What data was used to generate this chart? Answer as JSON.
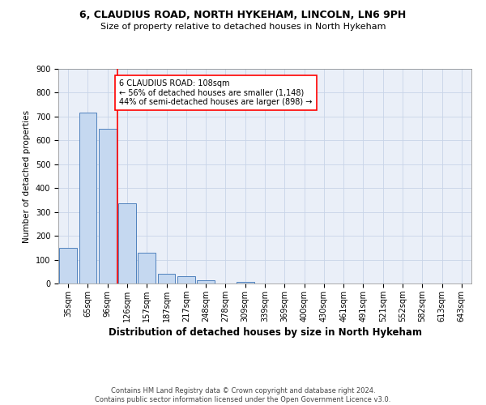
{
  "title1": "6, CLAUDIUS ROAD, NORTH HYKEHAM, LINCOLN, LN6 9PH",
  "title2": "Size of property relative to detached houses in North Hykeham",
  "xlabel": "Distribution of detached houses by size in North Hykeham",
  "ylabel": "Number of detached properties",
  "categories": [
    "35sqm",
    "65sqm",
    "96sqm",
    "126sqm",
    "157sqm",
    "187sqm",
    "217sqm",
    "248sqm",
    "278sqm",
    "309sqm",
    "339sqm",
    "369sqm",
    "400sqm",
    "430sqm",
    "461sqm",
    "491sqm",
    "521sqm",
    "552sqm",
    "582sqm",
    "613sqm",
    "643sqm"
  ],
  "values": [
    150,
    715,
    650,
    335,
    130,
    42,
    30,
    13,
    0,
    8,
    0,
    0,
    0,
    0,
    0,
    0,
    0,
    0,
    0,
    0,
    0
  ],
  "bar_color": "#c5d8f0",
  "bar_edge_color": "#4f81bd",
  "property_line_x": 2.5,
  "property_line_color": "red",
  "annotation_text": "6 CLAUDIUS ROAD: 108sqm\n← 56% of detached houses are smaller (1,148)\n44% of semi-detached houses are larger (898) →",
  "annotation_box_color": "white",
  "annotation_box_edge": "red",
  "ylim": [
    0,
    900
  ],
  "yticks": [
    0,
    100,
    200,
    300,
    400,
    500,
    600,
    700,
    800,
    900
  ],
  "footer": "Contains HM Land Registry data © Crown copyright and database right 2024.\nContains public sector information licensed under the Open Government Licence v3.0.",
  "title1_fontsize": 9,
  "title2_fontsize": 8,
  "xlabel_fontsize": 8.5,
  "ylabel_fontsize": 7.5,
  "tick_fontsize": 7,
  "annotation_fontsize": 7,
  "footer_fontsize": 6
}
